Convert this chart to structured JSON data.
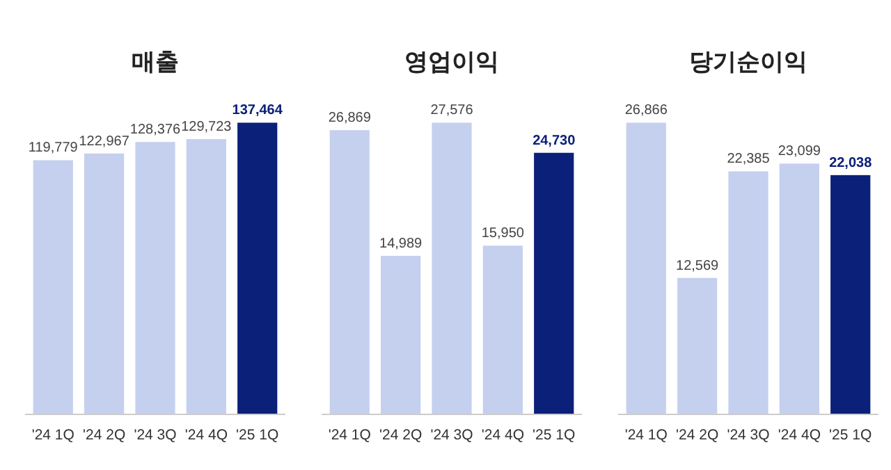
{
  "chart_data": [
    {
      "type": "bar",
      "title": "매출",
      "categories": [
        "'24 1Q",
        "'24 2Q",
        "'24 3Q",
        "'24 4Q",
        "'25 1Q"
      ],
      "values": [
        119779,
        122967,
        128376,
        129723,
        137464
      ],
      "colors": [
        "#c5d0ef",
        "#c5d0ef",
        "#c5d0ef",
        "#c5d0ef",
        "#0b2079"
      ],
      "value_labels": [
        "119,779",
        "122,967",
        "128,376",
        "129,723",
        "137,464"
      ],
      "tick_labels": "x"
    },
    {
      "type": "bar",
      "title": "영업이익",
      "categories": [
        "'24 1Q",
        "'24 2Q",
        "'24 3Q",
        "'24 4Q",
        "'25 1Q"
      ],
      "values": [
        26869,
        14989,
        27576,
        15950,
        24730
      ],
      "colors": [
        "#c5d0ef",
        "#c5d0ef",
        "#c5d0ef",
        "#c5d0ef",
        "#0b2079"
      ],
      "value_labels": [
        "26,869",
        "14,989",
        "27,576",
        "15,950",
        "24,730"
      ],
      "tick_labels": "x"
    },
    {
      "type": "bar",
      "title": "당기순이익",
      "categories": [
        "'24 1Q",
        "'24 2Q",
        "'24 3Q",
        "'24 4Q",
        "'25 1Q"
      ],
      "values": [
        26866,
        12569,
        22385,
        23099,
        22038
      ],
      "colors": [
        "#c5d0ef",
        "#c5d0ef",
        "#c5d0ef",
        "#c5d0ef",
        "#0b2079"
      ],
      "value_labels": [
        "26,866",
        "12,569",
        "22,385",
        "23,099",
        "22,038"
      ],
      "tick_labels": "x"
    }
  ]
}
